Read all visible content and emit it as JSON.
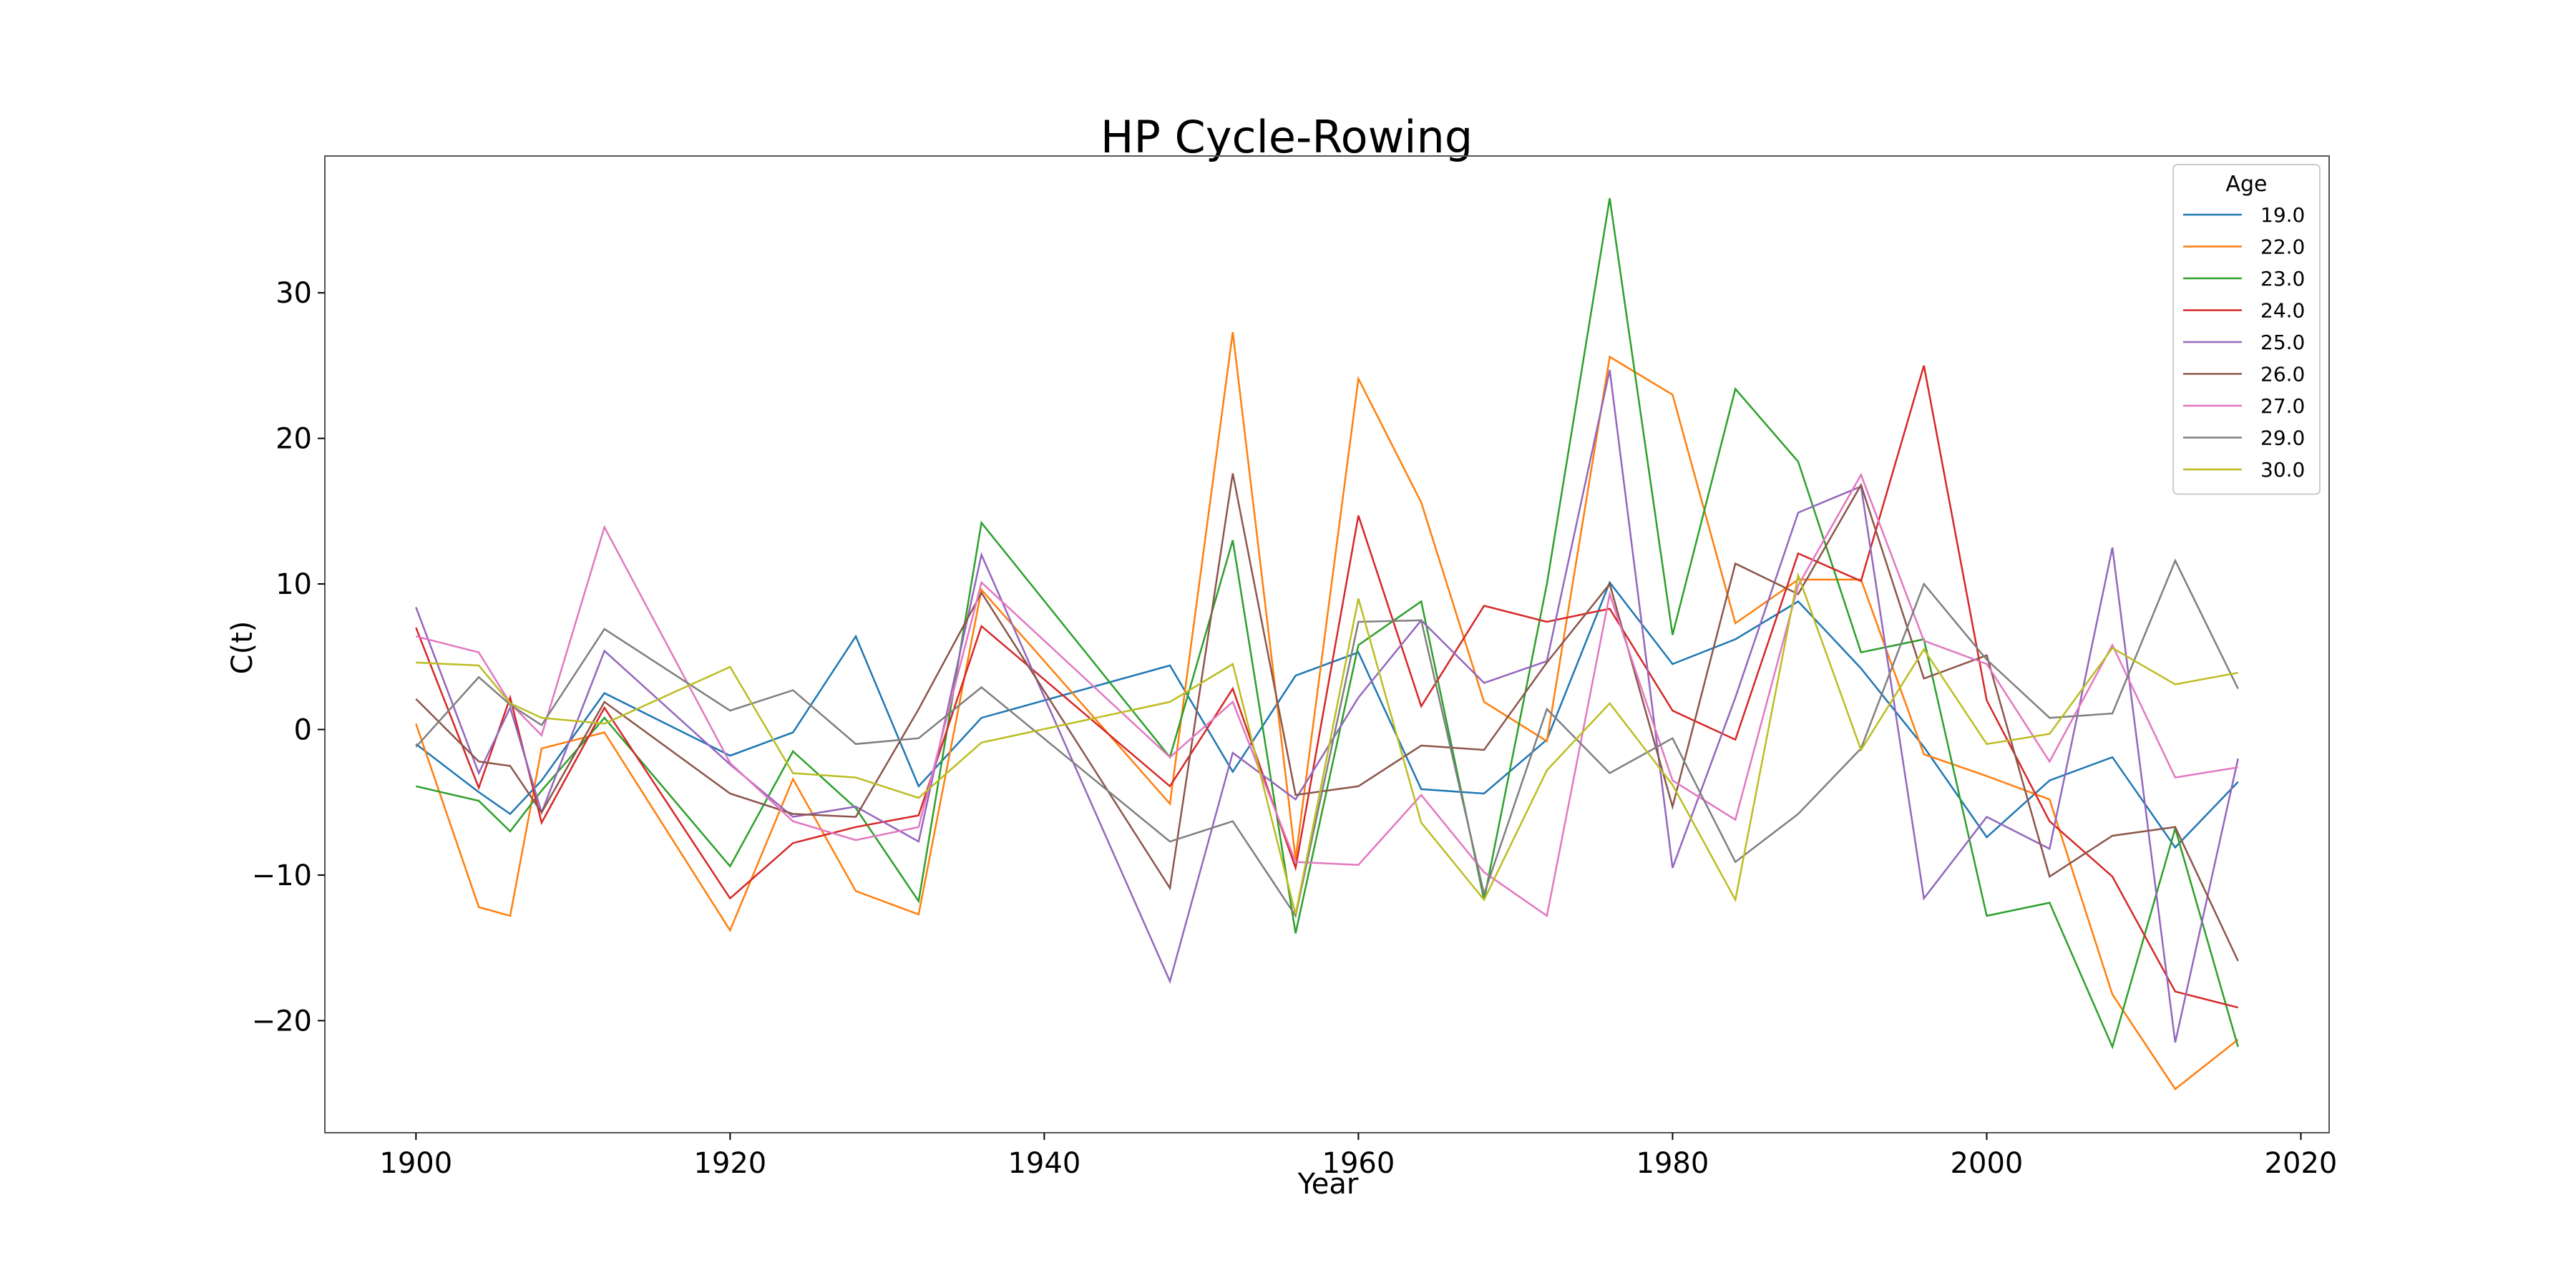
{
  "chart_data": {
    "type": "line",
    "title": "HP Cycle-Rowing",
    "xlabel": "Year",
    "ylabel": "C(t)",
    "xlim": [
      1894.2,
      2021.8
    ],
    "ylim": [
      -27.7,
      39.4
    ],
    "xticks": [
      1900,
      1920,
      1940,
      1960,
      1980,
      2000,
      2020
    ],
    "yticks": [
      -20,
      -10,
      0,
      10,
      20,
      30
    ],
    "grid": false,
    "legend": {
      "title": "Age",
      "placement": "top-right"
    },
    "x": [
      1900,
      1904,
      1906,
      1908,
      1912,
      1920,
      1924,
      1928,
      1932,
      1936,
      1948,
      1952,
      1956,
      1960,
      1964,
      1968,
      1972,
      1976,
      1980,
      1984,
      1988,
      1992,
      1996,
      2000,
      2004,
      2008,
      2012,
      2016
    ],
    "series": [
      {
        "name": "19.0",
        "color": "#1f77b4",
        "values": [
          -1,
          -4.3,
          -5.8,
          -3.5,
          2.5,
          -1.8,
          -0.2,
          6.4,
          -3.9,
          0.8,
          4.4,
          -2.9,
          3.7,
          5.3,
          -4.1,
          -4.4,
          -0.7,
          10.1,
          4.5,
          6.2,
          8.8,
          4.2,
          -1.2,
          -7.4,
          -3.5,
          -1.9,
          -8.1,
          -3.6
        ]
      },
      {
        "name": "22.0",
        "color": "#ff7f0e",
        "values": [
          0.4,
          -12.2,
          -12.8,
          -1.3,
          -0.2,
          -13.8,
          -3.4,
          -11.1,
          -12.7,
          9.6,
          -5.1,
          27.3,
          -8.9,
          24.1,
          15.6,
          1.9,
          -0.8,
          25.6,
          23,
          7.3,
          10.3,
          10.3,
          -1.7,
          -3.2,
          -4.8,
          -18.2,
          -24.7,
          -21.3
        ]
      },
      {
        "name": "23.0",
        "color": "#2ca02c",
        "values": [
          -3.9,
          -4.9,
          -7,
          -4.2,
          0.8,
          -9.4,
          -1.5,
          -5.4,
          -11.8,
          14.2,
          -1.9,
          13,
          -14,
          5.8,
          8.8,
          -11.7,
          10,
          36.5,
          6.5,
          23.4,
          18.4,
          5.3,
          6.2,
          -12.8,
          -11.9,
          -21.8,
          -6.8,
          -21.8
        ]
      },
      {
        "name": "24.0",
        "color": "#d62728",
        "values": [
          7,
          -4,
          2.2,
          -6.4,
          1.5,
          -11.6,
          -7.8,
          -6.7,
          -5.9,
          7.1,
          -3.9,
          2.8,
          -9.5,
          14.7,
          1.6,
          8.5,
          7.4,
          8.3,
          1.3,
          -0.7,
          12.1,
          10.2,
          25,
          2,
          -6.3,
          -10.1,
          -18,
          -19.1
        ]
      },
      {
        "name": "25.0",
        "color": "#9467bd",
        "values": [
          8.4,
          -3,
          1.5,
          -5.7,
          5.4,
          -2.4,
          -6,
          -5.3,
          -7.7,
          12,
          -17.3,
          -1.6,
          -4.8,
          2.2,
          7.5,
          3.2,
          4.7,
          24.7,
          -9.5,
          2.2,
          14.9,
          16.7,
          -11.6,
          -6,
          -8.2,
          12.5,
          -21.5,
          -2
        ]
      },
      {
        "name": "26.0",
        "color": "#8c564b",
        "values": [
          2.1,
          -2.2,
          -2.5,
          -5.7,
          1.9,
          -4.4,
          -5.8,
          -6,
          1.4,
          9.4,
          -10.9,
          17.6,
          -4.5,
          -3.9,
          -1.1,
          -1.4,
          4.6,
          10,
          -5.3,
          11.4,
          9.3,
          16.8,
          3.5,
          5.1,
          -10.1,
          -7.3,
          -6.7,
          -15.9
        ]
      },
      {
        "name": "27.0",
        "color": "#e377c2",
        "values": [
          6.4,
          5.3,
          1.8,
          -0.4,
          13.9,
          -2.3,
          -6.3,
          -7.6,
          -6.7,
          10.1,
          -1.9,
          1.9,
          -9.1,
          -9.3,
          -4.5,
          -9.8,
          -12.8,
          9.3,
          -3.5,
          -6.2,
          9.9,
          17.5,
          6.1,
          4.5,
          -2.2,
          5.8,
          -3.3,
          -2.6
        ]
      },
      {
        "name": "29.0",
        "color": "#7f7f7f",
        "values": [
          -1.2,
          3.6,
          1.7,
          0.3,
          6.9,
          1.3,
          2.7,
          -1,
          -0.6,
          2.9,
          -7.7,
          -6.3,
          -12.8,
          7.4,
          7.5,
          -11.3,
          1.4,
          -3,
          -0.6,
          -9.1,
          -5.8,
          -1.3,
          10,
          4.8,
          0.8,
          1.1,
          11.6,
          2.8
        ]
      },
      {
        "name": "30.0",
        "color": "#bcbd22",
        "values": [
          4.6,
          4.4,
          1.8,
          0.8,
          0.4,
          4.3,
          -3,
          -3.3,
          -4.7,
          -0.9,
          1.9,
          4.5,
          -12.7,
          9,
          -6.4,
          -11.7,
          -2.8,
          1.8,
          -3.8,
          -11.7,
          10.6,
          -1.4,
          5.5,
          -1,
          -0.3,
          5.6,
          3.1,
          3.9
        ]
      }
    ]
  }
}
